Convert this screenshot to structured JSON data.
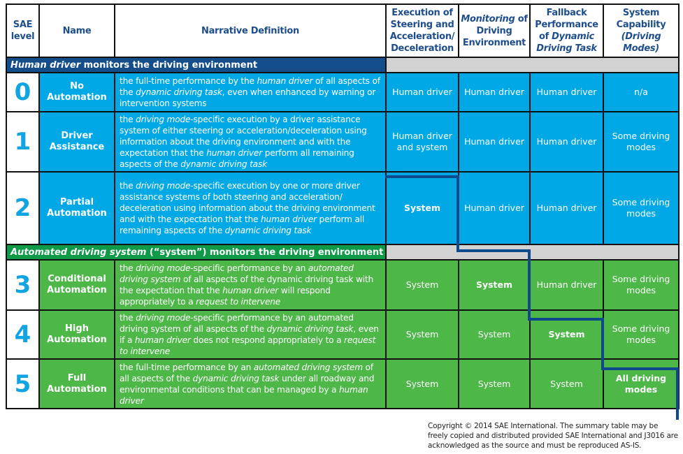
{
  "colors": {
    "header_text": "#1f4e8c",
    "human_band": "#134e8a",
    "system_band": "#0f9a48",
    "human_rows": "#00a9e6",
    "system_rows": "#4db748",
    "level_number": "#11a4e2",
    "gray_band": "#d2d2d2",
    "staircase": "#0d4a8c"
  },
  "headers": [
    "SAE level",
    "Name",
    "Narrative Definition",
    "Execution of Steering and Acceleration/ Deceleration",
    "Monitoring of Driving Environment",
    "Fallback Performance of Dynamic Driving Task",
    "System Capability (Driving Modes)"
  ],
  "header_segments": [
    [
      {
        "t": "SAE level",
        "i": false
      }
    ],
    [
      {
        "t": "Name",
        "i": false
      }
    ],
    [
      {
        "t": "Narrative Definition",
        "i": false
      }
    ],
    [
      {
        "t": "Execution of Steering and Acceleration/ Deceleration",
        "i": false
      }
    ],
    [
      {
        "t": "Monitoring",
        "i": true
      },
      {
        "t": " of Driving Environment",
        "i": false
      }
    ],
    [
      {
        "t": "Fallback Performance of ",
        "i": false
      },
      {
        "t": "Dynamic Driving Task",
        "i": true
      }
    ],
    [
      {
        "t": "System Capability ",
        "i": false
      },
      {
        "t": "(Driving Modes)",
        "i": true
      }
    ]
  ],
  "bands": [
    [
      {
        "t": "Human driver",
        "i": true
      },
      {
        "t": " monitors the driving environment",
        "i": false
      }
    ],
    [
      {
        "t": "Automated driving system",
        "i": true
      },
      {
        "t": " (“system”) monitors the driving environment",
        "i": false
      }
    ]
  ],
  "rows": [
    {
      "level": "0",
      "name": "No Automation",
      "def": [
        {
          "t": "the full-time performance by the ",
          "i": false
        },
        {
          "t": "human driver",
          "i": true
        },
        {
          "t": " of all aspects of the ",
          "i": false
        },
        {
          "t": "dynamic driving task",
          "i": true
        },
        {
          "t": ", even when enhanced by warning or intervention systems",
          "i": false
        }
      ],
      "cells": [
        "Human driver",
        "Human driver",
        "Human driver",
        "n/a"
      ],
      "bold": [
        false,
        false,
        false,
        false
      ]
    },
    {
      "level": "1",
      "name": "Driver Assistance",
      "def": [
        {
          "t": "the ",
          "i": false
        },
        {
          "t": "driving mode",
          "i": true
        },
        {
          "t": "-specific execution by a driver assistance system of either steering or acceleration/deceleration using information about the driving environment and with the expectation that the ",
          "i": false
        },
        {
          "t": "human driver",
          "i": true
        },
        {
          "t": " perform all remaining aspects of the ",
          "i": false
        },
        {
          "t": "dynamic driving task",
          "i": true
        }
      ],
      "cells": [
        "Human driver and system",
        "Human driver",
        "Human driver",
        "Some driving modes"
      ],
      "bold": [
        false,
        false,
        false,
        false
      ]
    },
    {
      "level": "2",
      "name": "Partial Automation",
      "def": [
        {
          "t": "the ",
          "i": false
        },
        {
          "t": "driving mode",
          "i": true
        },
        {
          "t": "-specific execution by one or more driver assistance systems of both steering and acceleration/ deceleration using information about the driving environment and with the expectation that the ",
          "i": false
        },
        {
          "t": "human driver",
          "i": true
        },
        {
          "t": " perform all remaining aspects of the ",
          "i": false
        },
        {
          "t": "dynamic driving task",
          "i": true
        }
      ],
      "cells": [
        "System",
        "Human driver",
        "Human driver",
        "Some driving modes"
      ],
      "bold": [
        true,
        false,
        false,
        false
      ]
    },
    {
      "level": "3",
      "name": "Conditional Automation",
      "def": [
        {
          "t": "the ",
          "i": false
        },
        {
          "t": "driving mode",
          "i": true
        },
        {
          "t": "-specific performance by an ",
          "i": false
        },
        {
          "t": "automated driving system",
          "i": true
        },
        {
          "t": " of all aspects of the dynamic driving task with the expectation that the ",
          "i": false
        },
        {
          "t": "human driver",
          "i": true
        },
        {
          "t": " will respond appropriately to a ",
          "i": false
        },
        {
          "t": "request to intervene",
          "i": true
        }
      ],
      "cells": [
        "System",
        "System",
        "Human driver",
        "Some driving modes"
      ],
      "bold": [
        false,
        true,
        false,
        false
      ]
    },
    {
      "level": "4",
      "name": "High Automation",
      "def": [
        {
          "t": "the ",
          "i": false
        },
        {
          "t": "driving mode",
          "i": true
        },
        {
          "t": "-specific performance by an automated driving system of all aspects of the ",
          "i": false
        },
        {
          "t": "dynamic driving task",
          "i": true
        },
        {
          "t": ", even if a ",
          "i": false
        },
        {
          "t": "human driver",
          "i": true
        },
        {
          "t": " does not respond appropriately to a ",
          "i": false
        },
        {
          "t": "request to intervene",
          "i": true
        }
      ],
      "cells": [
        "System",
        "System",
        "System",
        "Some driving modes"
      ],
      "bold": [
        false,
        false,
        true,
        false
      ]
    },
    {
      "level": "5",
      "name": "Full Automation",
      "def": [
        {
          "t": "the full-time performance by an ",
          "i": false
        },
        {
          "t": "automated driving system",
          "i": true
        },
        {
          "t": " of all aspects of the ",
          "i": false
        },
        {
          "t": "dynamic driving task",
          "i": true
        },
        {
          "t": " under all roadway and environmental conditions that can be managed by a ",
          "i": false
        },
        {
          "t": "human driver",
          "i": true
        }
      ],
      "cells": [
        "System",
        "System",
        "System",
        "All driving modes"
      ],
      "bold": [
        false,
        false,
        false,
        true
      ]
    }
  ],
  "copyright": "Copyright © 2014 SAE International. The summary table may be freely copied and distributed provided SAE International and J3016 are acknowledged as the source and must be reproduced AS-IS."
}
